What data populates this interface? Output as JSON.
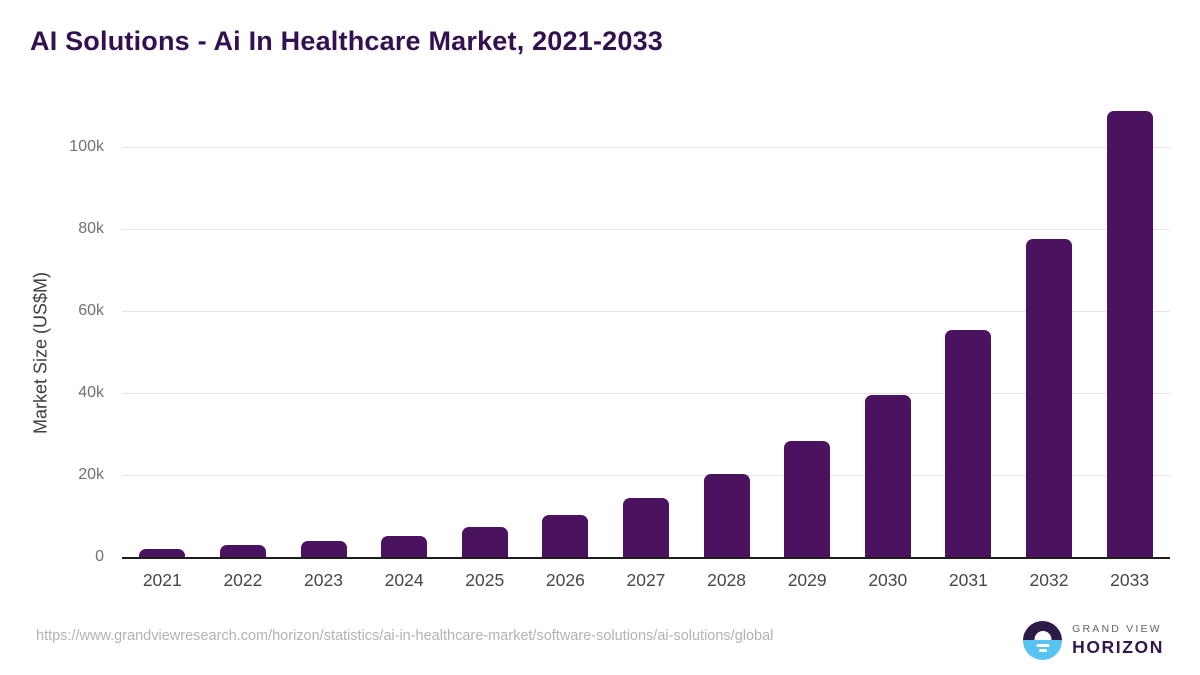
{
  "title": "AI Solutions - Ai In Healthcare Market, 2021-2033",
  "chart_data": {
    "type": "bar",
    "title": "AI Solutions - Ai In Healthcare Market, 2021-2033",
    "categories": [
      "2021",
      "2022",
      "2023",
      "2024",
      "2025",
      "2026",
      "2027",
      "2028",
      "2029",
      "2030",
      "2031",
      "2032",
      "2033"
    ],
    "values": [
      2300,
      3100,
      4100,
      5400,
      7500,
      10500,
      14600,
      20500,
      28600,
      39900,
      55600,
      77900,
      109000
    ],
    "unit": "US$M",
    "xlabel": "",
    "ylabel": "Market Size (US$M)",
    "ylim": [
      0,
      112000
    ],
    "yticks": [
      {
        "v": 0,
        "label": "0"
      },
      {
        "v": 20000,
        "label": "20k"
      },
      {
        "v": 40000,
        "label": "40k"
      },
      {
        "v": 60000,
        "label": "60k"
      },
      {
        "v": 80000,
        "label": "80k"
      },
      {
        "v": 100000,
        "label": "100k"
      }
    ],
    "grid": "horizontal",
    "legend": "none",
    "bar_color": "#4a125f"
  },
  "footer": {
    "source_url": "https://www.grandviewresearch.com/horizon/statistics/ai-in-healthcare-market/software-solutions/ai-solutions/global",
    "logo": {
      "line1": "GRAND VIEW",
      "line2": "HORIZON"
    }
  },
  "colors": {
    "title": "#331050",
    "bar": "#4a125f",
    "gridline": "#e4e4e4",
    "axis_line": "#1e1e1e",
    "y_tick_text": "#717171",
    "x_tick_text": "#474747",
    "source_text": "#b3b3b3",
    "logo_dark": "#2d1b47",
    "logo_blue": "#58c3f0"
  }
}
